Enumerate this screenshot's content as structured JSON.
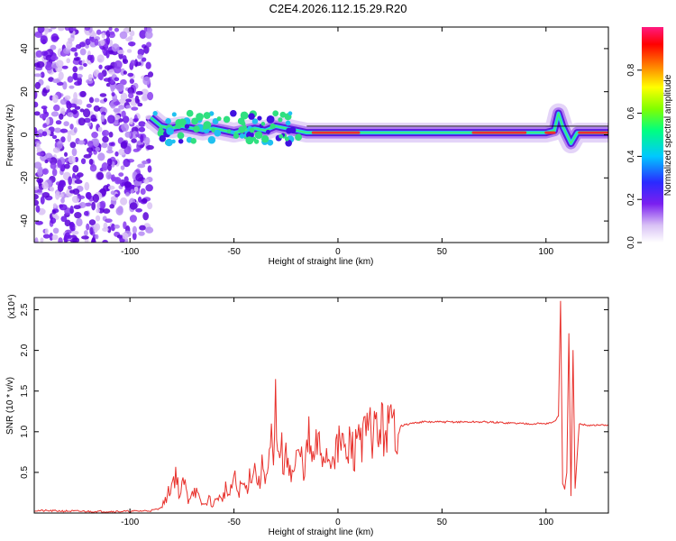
{
  "figure": {
    "title": "C2E4.2026.112.15.29.R20"
  },
  "chart_data": [
    {
      "type": "heatmap",
      "title": "C2E4.2026.112.15.29.R20",
      "xlabel": "Height of straight line (km)",
      "ylabel": "Frequency (Hz)",
      "xlim": [
        -146,
        130
      ],
      "ylim": [
        -50,
        50
      ],
      "xticks": [
        -100,
        -50,
        0,
        50,
        100
      ],
      "yticks": [
        -40,
        -20,
        0,
        20,
        40
      ],
      "grid": false,
      "noise_region_x": [
        -146,
        -90
      ],
      "trace": {
        "x": [
          -90,
          -85,
          -80,
          -75,
          -70,
          -65,
          -60,
          -55,
          -50,
          -45,
          -40,
          -35,
          -30,
          -25,
          -20,
          -15,
          -10,
          -5,
          0,
          5,
          10,
          20,
          40,
          60,
          80,
          100,
          104,
          106,
          108,
          110,
          112,
          115,
          120,
          130
        ],
        "y": [
          8,
          4,
          3,
          4,
          3,
          2,
          3,
          2,
          1,
          2,
          3,
          2,
          4,
          3,
          2,
          1,
          1,
          1,
          1,
          1,
          1,
          1,
          1,
          1,
          1,
          1,
          2,
          10,
          4,
          0,
          -4,
          1,
          1,
          1
        ]
      },
      "colorbar": {
        "label": "Normalized spectral amplitude",
        "range": [
          0.0,
          1.0
        ],
        "ticks": [
          0.0,
          0.2,
          0.4,
          0.6,
          0.8
        ],
        "tick_labels": [
          "0.0",
          "0.2",
          "0.4",
          "0.6",
          "0.8"
        ]
      }
    },
    {
      "type": "line",
      "xlabel": "Height of straight line (km)",
      "ylabel": "SNR (10 * v/v)",
      "y_multiplier_label": "(x10⁴)",
      "xlim": [
        -146,
        130
      ],
      "ylim": [
        0,
        2.65
      ],
      "xticks": [
        -100,
        -50,
        0,
        50,
        100
      ],
      "yticks": [
        0.5,
        1.0,
        1.5,
        2.0,
        2.5
      ],
      "ytick_labels": [
        "0.5",
        "1.0",
        "1.5",
        "2.0",
        "2.5"
      ],
      "grid": false,
      "color": "#e8312c",
      "series": [
        {
          "x": [
            -146,
            -120,
            -100,
            -90,
            -86,
            -83,
            -80,
            -78,
            -76,
            -74,
            -72,
            -70,
            -68,
            -66,
            -64,
            -62,
            -60,
            -58,
            -56,
            -54,
            -52,
            -50,
            -48,
            -46,
            -44,
            -42,
            -40,
            -38,
            -36,
            -34,
            -32,
            -31,
            -30,
            -29,
            -28,
            -26,
            -24,
            -22,
            -20,
            -18,
            -16,
            -14,
            -12,
            -10,
            -8,
            -6,
            -4,
            -2,
            0,
            2,
            4,
            6,
            8,
            10,
            12,
            15,
            20,
            25,
            30,
            35,
            40,
            50,
            60,
            70,
            80,
            90,
            100,
            104,
            106,
            107,
            108,
            109,
            110,
            111,
            112,
            113,
            114,
            116,
            120,
            130
          ],
          "y": [
            0.03,
            0.02,
            0.02,
            0.03,
            0.05,
            0.15,
            0.35,
            0.5,
            0.2,
            0.4,
            0.15,
            0.3,
            0.25,
            0.12,
            0.1,
            0.18,
            0.08,
            0.22,
            0.15,
            0.3,
            0.2,
            0.45,
            0.25,
            0.35,
            0.3,
            0.5,
            0.55,
            0.35,
            0.6,
            0.45,
            0.85,
            0.5,
            1.3,
            0.6,
            0.95,
            0.55,
            0.75,
            0.45,
            0.65,
            0.7,
            0.55,
            0.9,
            0.6,
            0.85,
            0.7,
            0.75,
            0.65,
            0.8,
            0.75,
            0.95,
            0.6,
            0.9,
            0.7,
            1.1,
            0.9,
            1.0,
            1.02,
            1.05,
            1.07,
            1.1,
            1.12,
            1.12,
            1.12,
            1.12,
            1.11,
            1.1,
            1.1,
            1.12,
            1.2,
            2.6,
            0.35,
            0.3,
            0.5,
            2.2,
            0.2,
            2.0,
            0.3,
            1.1,
            1.08,
            1.08
          ]
        }
      ]
    }
  ]
}
